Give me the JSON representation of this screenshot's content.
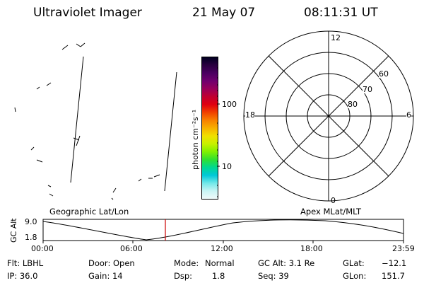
{
  "header": {
    "instrument": "Ultraviolet Imager",
    "date": "21 May 07",
    "time": "08:11:31 UT"
  },
  "colorbar": {
    "label": "photon cm⁻²s⁻¹",
    "tick_labels": [
      "100",
      "10"
    ],
    "colors": [
      "#000020",
      "#2a0040",
      "#4a0060",
      "#70006e",
      "#98005a",
      "#c00030",
      "#e00010",
      "#f04000",
      "#f88000",
      "#f8b000",
      "#f0e000",
      "#c8f000",
      "#80f000",
      "#30e030",
      "#00d890",
      "#00c8d8",
      "#70e8e8",
      "#c8f4f4",
      "#f0fafa"
    ]
  },
  "map_labels": {
    "left": "Geographic Lat/Lon",
    "right": "Apex MLat/MLT"
  },
  "polar_plot": {
    "mlt_labels": {
      "top": "12",
      "bottom": "0",
      "left": "18",
      "right": "6"
    },
    "mlat_labels": [
      "60",
      "70",
      "80"
    ]
  },
  "altitude_panel": {
    "ylabel": "GC Alt",
    "y_ticks": [
      "9.0",
      "1.8"
    ],
    "x_ticks": [
      "00:00",
      "06:00",
      "12:00",
      "18:00",
      "23:59"
    ],
    "marker_color": "#cc0000"
  },
  "info": {
    "flt": "Flt: LBHL",
    "ip": "IP: 36.0",
    "door": "Door: Open",
    "gain": "Gain: 14",
    "mode_label": "Mode:",
    "mode_value": "Normal",
    "dsp_label": "Dsp:",
    "dsp_value": "1.8",
    "gc_alt": "GC Alt: 3.1 Re",
    "seq": "Seq: 39",
    "glat_label": "GLat:",
    "glat_value": "−12.1",
    "glon_label": "GLon:",
    "glon_value": "151.7"
  }
}
